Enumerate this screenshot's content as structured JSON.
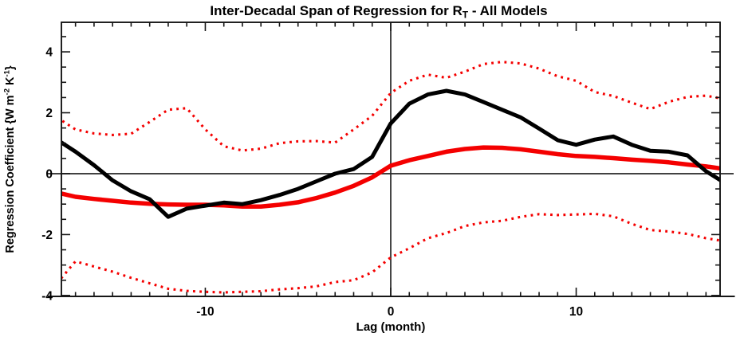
{
  "title": {
    "prefix": "Inter-Decadal Span of Regression for R",
    "sub": "T",
    "suffix": " - All Models"
  },
  "axes": {
    "x_label": "Lag (month)",
    "y_label": {
      "prefix": "Regression Coefficient {W m",
      "sup1": "-2",
      "mid": " K",
      "sup2": "-1",
      "suffix": "}"
    }
  },
  "colors": {
    "line_red": "#f40000",
    "line_black": "#000000",
    "axis": "#161616",
    "reference_line": "#262626",
    "background": "#ffffff"
  },
  "chart_data": {
    "type": "line",
    "title": "Inter-Decadal Span of Regression for R_T - All Models",
    "xlabel": "Lag (month)",
    "ylabel": "Regression Coefficient {W m^-2 K^-1}",
    "xlim": [
      -17.76,
      17.76
    ],
    "ylim": [
      -4.03,
      4.97
    ],
    "grid": false,
    "legend": "none",
    "x_start": -18,
    "x_step": 1,
    "x_ticks": {
      "major": [
        -10,
        0,
        10
      ],
      "minor_step": 1
    },
    "y_ticks": {
      "major": [
        -4,
        -2,
        0,
        2,
        4
      ],
      "minor_step": 0.5
    },
    "reference_lines": {
      "vertical_x": 0,
      "horizontal_y": 0
    },
    "series": [
      {
        "name": "upper-bound-dotted",
        "style": "dotted",
        "color": "#f40000",
        "width": 3.1,
        "values": [
          1.85,
          1.45,
          1.32,
          1.27,
          1.31,
          1.7,
          2.1,
          2.15,
          1.45,
          0.9,
          0.76,
          0.82,
          1.0,
          1.06,
          1.07,
          1.02,
          1.45,
          1.9,
          2.65,
          3.05,
          3.25,
          3.15,
          3.35,
          3.6,
          3.67,
          3.62,
          3.45,
          3.2,
          3.05,
          2.68,
          2.55,
          2.33,
          2.12,
          2.36,
          2.52,
          2.56,
          2.45
        ]
      },
      {
        "name": "lower-bound-dotted",
        "style": "dotted",
        "color": "#f40000",
        "width": 3.1,
        "values": [
          -3.6,
          -2.88,
          -3.05,
          -3.22,
          -3.42,
          -3.6,
          -3.78,
          -3.85,
          -3.88,
          -3.9,
          -3.88,
          -3.86,
          -3.8,
          -3.76,
          -3.7,
          -3.56,
          -3.5,
          -3.24,
          -2.75,
          -2.45,
          -2.12,
          -1.95,
          -1.72,
          -1.6,
          -1.55,
          -1.42,
          -1.33,
          -1.36,
          -1.34,
          -1.32,
          -1.4,
          -1.65,
          -1.85,
          -1.9,
          -1.98,
          -2.12,
          -2.22
        ]
      },
      {
        "name": "mean-regression-red",
        "style": "solid",
        "color": "#f40000",
        "width": 5.5,
        "values": [
          -0.62,
          -0.76,
          -0.83,
          -0.89,
          -0.95,
          -0.99,
          -1.01,
          -1.02,
          -1.02,
          -1.04,
          -1.08,
          -1.08,
          -1.02,
          -0.94,
          -0.8,
          -0.62,
          -0.4,
          -0.12,
          0.26,
          0.44,
          0.58,
          0.72,
          0.81,
          0.86,
          0.85,
          0.8,
          0.72,
          0.64,
          0.58,
          0.55,
          0.51,
          0.46,
          0.42,
          0.37,
          0.3,
          0.24,
          0.15
        ]
      },
      {
        "name": "inter-decadal-span-black",
        "style": "solid",
        "color": "#000000",
        "width": 5,
        "values": [
          1.12,
          0.72,
          0.28,
          -0.22,
          -0.58,
          -0.84,
          -1.42,
          -1.15,
          -1.05,
          -0.95,
          -1.0,
          -0.87,
          -0.7,
          -0.5,
          -0.25,
          0.0,
          0.15,
          0.55,
          1.65,
          2.3,
          2.6,
          2.72,
          2.6,
          2.35,
          2.1,
          1.85,
          1.48,
          1.1,
          0.95,
          1.12,
          1.22,
          0.95,
          0.75,
          0.72,
          0.6,
          0.08,
          -0.3
        ]
      }
    ]
  }
}
